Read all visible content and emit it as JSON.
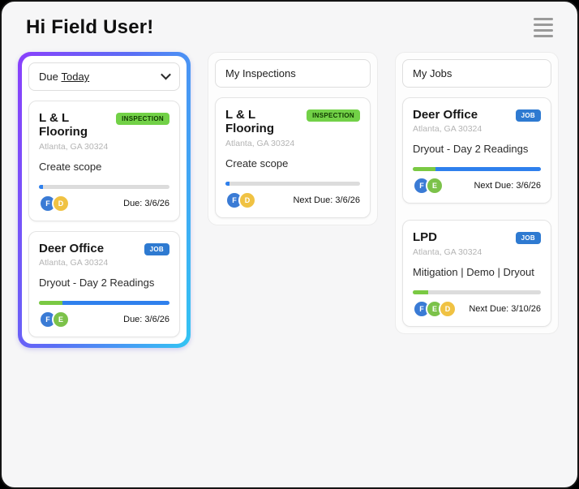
{
  "page": {
    "greeting": "Hi Field User!"
  },
  "menu": {
    "icon": "hamburger-menu"
  },
  "colors": {
    "accent_gradient_start": "#8a3ffc",
    "accent_gradient_mid": "#5b6ef5",
    "accent_gradient_end": "#33c5f3",
    "inspection_badge": "#72d147",
    "job_badge": "#2e7ad1",
    "progress_track": "#dcdcdc",
    "progress_blue": "#2f80ed",
    "progress_green": "#7ac943",
    "avatar_blue": "#3a7bd5",
    "avatar_yellow": "#f0c243",
    "avatar_green": "#7cc24a"
  },
  "due_column": {
    "filter_prefix": "Due",
    "filter_value": "Today",
    "cards": [
      {
        "title": "L & L Flooring",
        "badge": "INSPECTION",
        "location": "Atlanta, GA 30324",
        "task": "Create scope",
        "due": "Due: 3/6/26",
        "progress": [
          {
            "color": "#2f80ed",
            "pct": 3
          },
          {
            "color": "#2f80ed",
            "pct": 0
          }
        ],
        "avatars": [
          {
            "initial": "F",
            "color": "#3a7bd5"
          },
          {
            "initial": "D",
            "color": "#f0c243"
          }
        ]
      },
      {
        "title": "Deer Office",
        "badge": "JOB",
        "location": "Atlanta, GA 30324",
        "task": "Dryout - Day 2 Readings",
        "due": "Due: 3/6/26",
        "progress": [
          {
            "color": "#7ac943",
            "pct": 18
          },
          {
            "color": "#2f80ed",
            "pct": 82
          }
        ],
        "avatars": [
          {
            "initial": "F",
            "color": "#3a7bd5"
          },
          {
            "initial": "E",
            "color": "#7cc24a"
          }
        ]
      }
    ]
  },
  "inspections_column": {
    "header": "My Inspections",
    "cards": [
      {
        "title": "L & L Flooring",
        "badge": "INSPECTION",
        "location": "Atlanta, GA 30324",
        "task": "Create scope",
        "due": "Next Due: 3/6/26",
        "progress": [
          {
            "color": "#2f80ed",
            "pct": 3
          },
          {
            "color": "#2f80ed",
            "pct": 0
          }
        ],
        "avatars": [
          {
            "initial": "F",
            "color": "#3a7bd5"
          },
          {
            "initial": "D",
            "color": "#f0c243"
          }
        ]
      }
    ]
  },
  "jobs_column": {
    "header": "My Jobs",
    "cards": [
      {
        "title": "Deer Office",
        "badge": "JOB",
        "location": "Atlanta, GA 30324",
        "task": "Dryout - Day 2 Readings",
        "due": "Next Due: 3/6/26",
        "progress": [
          {
            "color": "#7ac943",
            "pct": 18
          },
          {
            "color": "#2f80ed",
            "pct": 82
          }
        ],
        "avatars": [
          {
            "initial": "F",
            "color": "#3a7bd5"
          },
          {
            "initial": "E",
            "color": "#7cc24a"
          }
        ]
      },
      {
        "title": "LPD",
        "badge": "JOB",
        "location": "Atlanta, GA 30324",
        "task": "Mitigation | Demo | Dryout",
        "due": "Next Due: 3/10/26",
        "progress": [
          {
            "color": "#7ac943",
            "pct": 12
          },
          {
            "color": "#7ac943",
            "pct": 0
          }
        ],
        "avatars": [
          {
            "initial": "F",
            "color": "#3a7bd5"
          },
          {
            "initial": "E",
            "color": "#7cc24a"
          },
          {
            "initial": "D",
            "color": "#f0c243"
          }
        ]
      }
    ]
  }
}
